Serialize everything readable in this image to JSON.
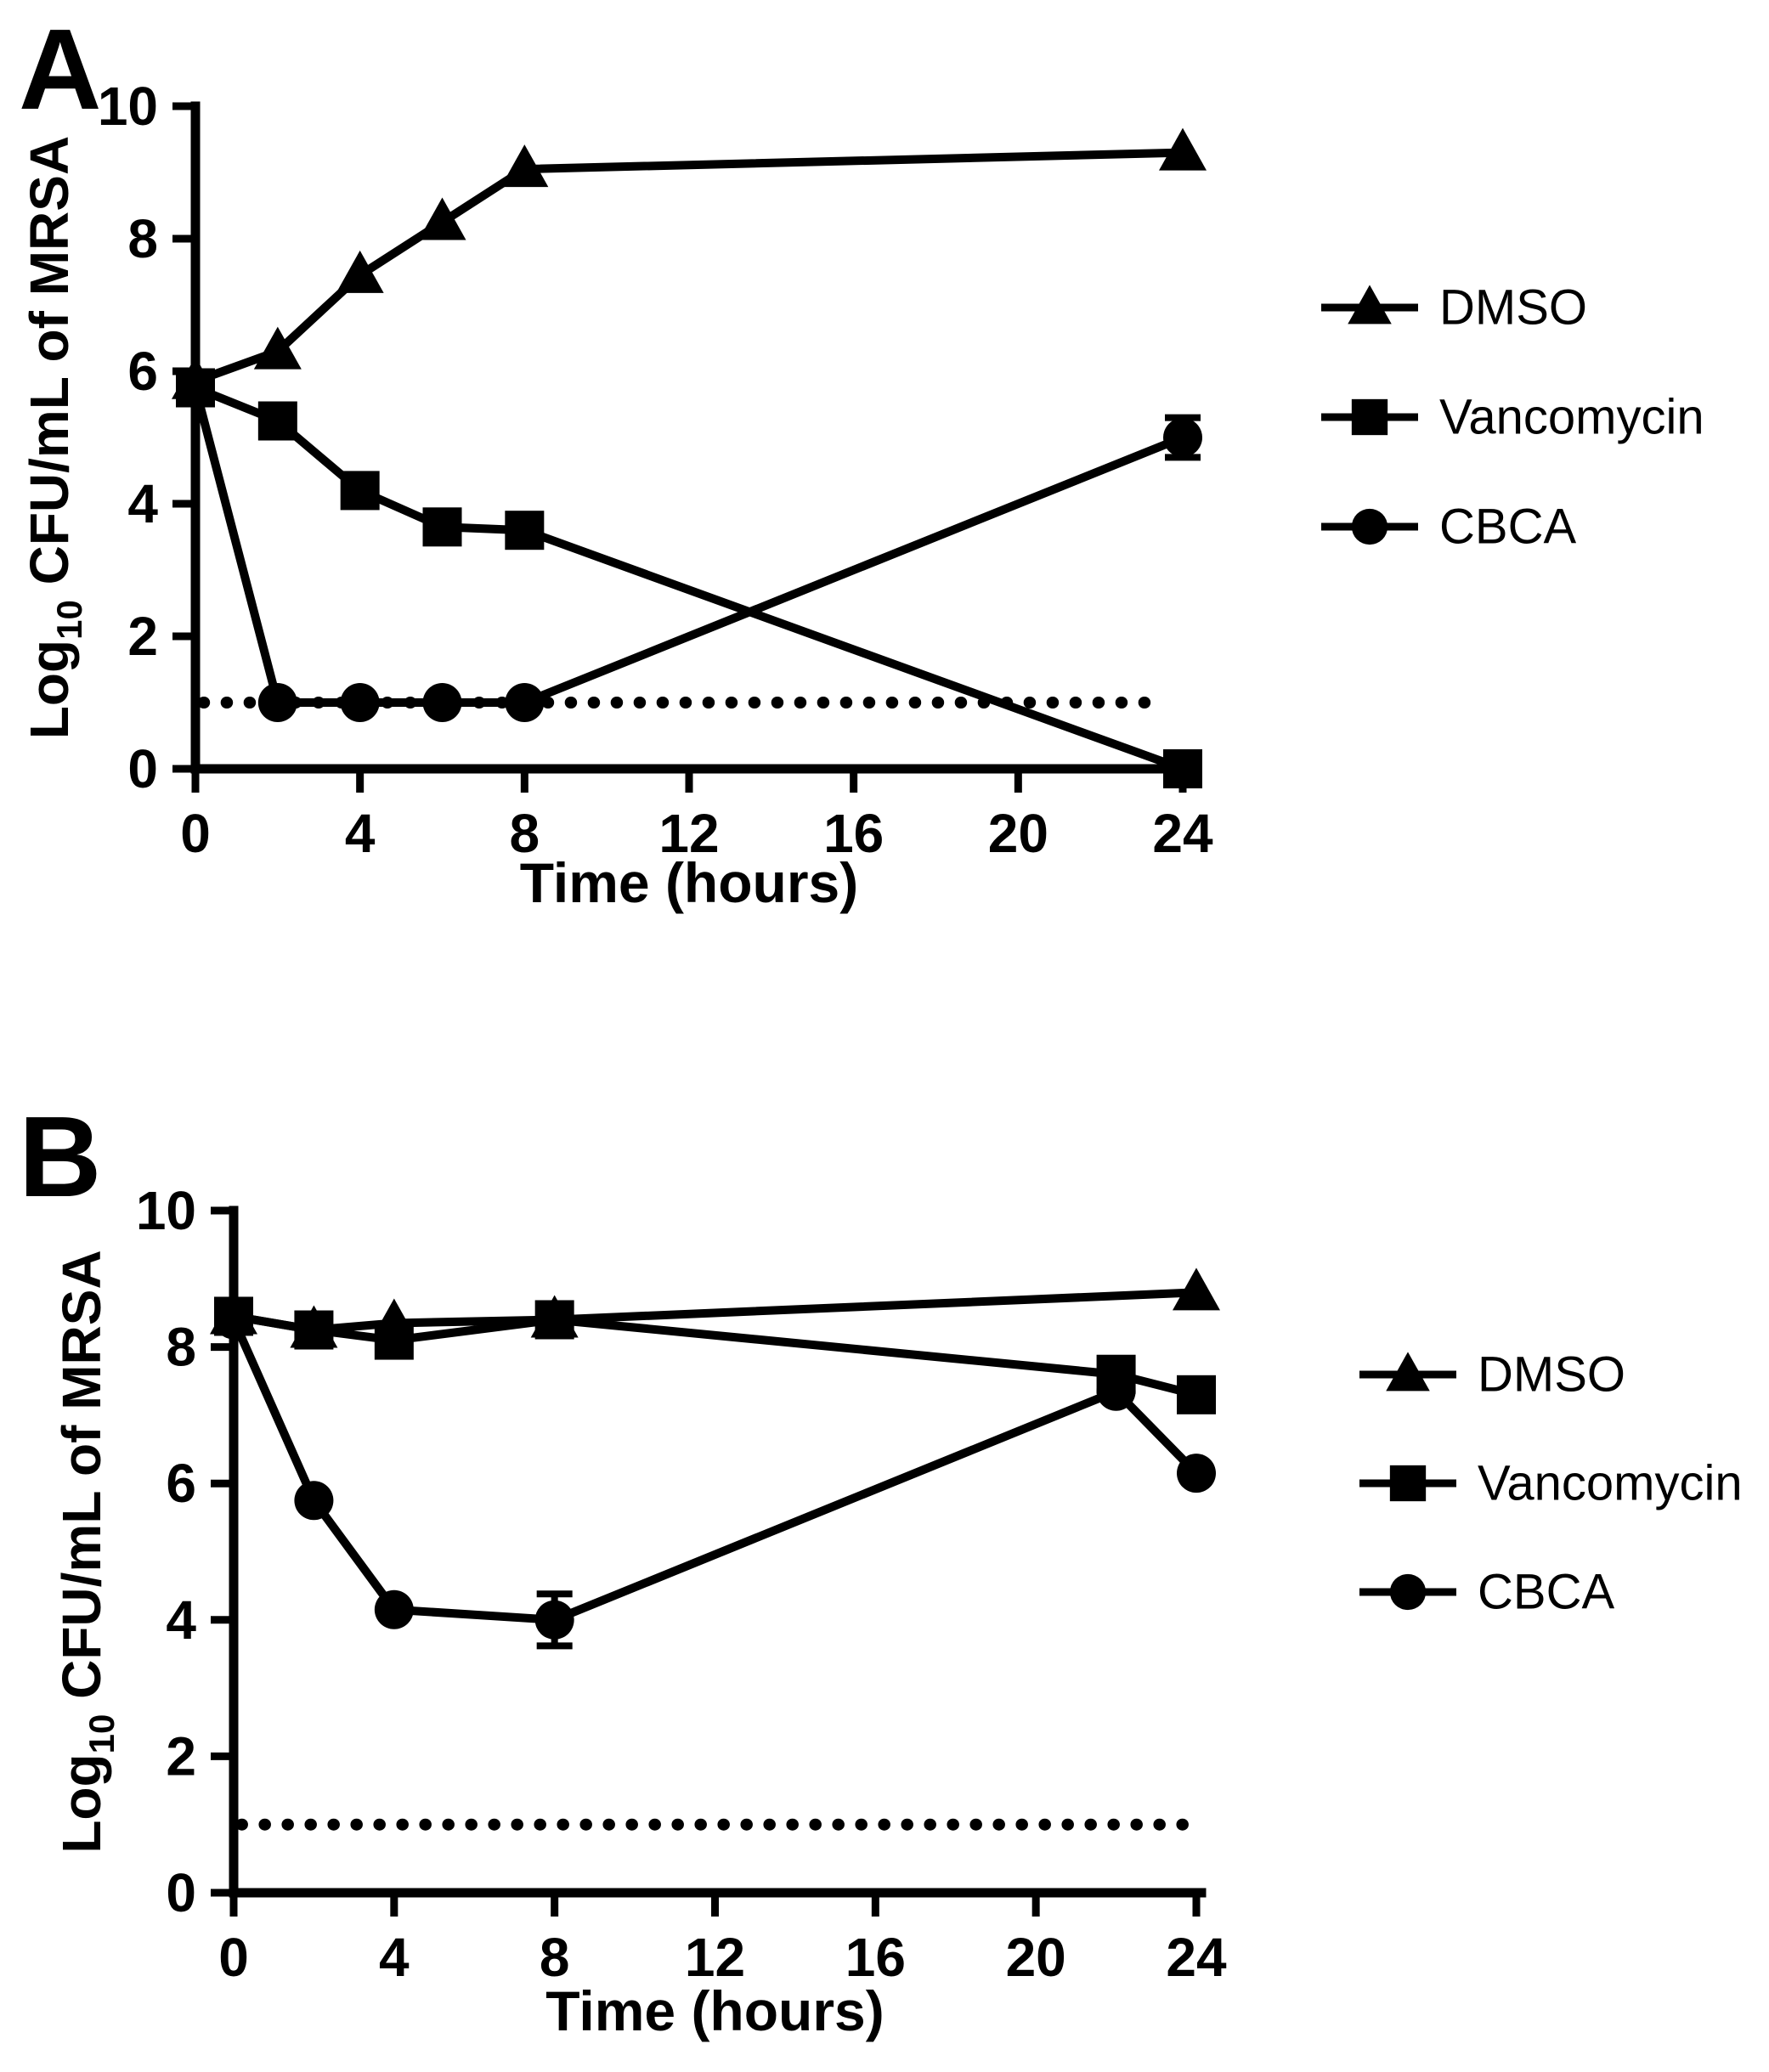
{
  "colors": {
    "ink": "#000000",
    "background": "#ffffff"
  },
  "chart_data": [
    {
      "type": "line",
      "panel_label": "A",
      "title": "",
      "xlabel": "Time (hours)",
      "ylabel_main": "Log",
      "ylabel_sub": "10",
      "ylabel_rest": " CFU/mL of MRSA",
      "xlim": [
        0,
        24
      ],
      "ylim": [
        0,
        10
      ],
      "x_ticks": [
        0,
        4,
        8,
        12,
        16,
        20,
        24
      ],
      "y_ticks": [
        0,
        2,
        4,
        6,
        8,
        10
      ],
      "grid": false,
      "legend_position": "right",
      "detection_limit": {
        "y": 1.0,
        "x_start": 0.2,
        "x_end": 23.35,
        "style": "dotted"
      },
      "series": [
        {
          "name": "DMSO",
          "marker": "triangle",
          "points": [
            [
              0,
              5.85
            ],
            [
              2,
              6.3
            ],
            [
              4,
              7.45
            ],
            [
              6,
              8.25
            ],
            [
              8,
              9.05
            ],
            [
              24,
              9.3
            ]
          ],
          "errors": {}
        },
        {
          "name": "Vancomycin",
          "marker": "square",
          "points": [
            [
              0,
              5.75
            ],
            [
              2,
              5.25
            ],
            [
              4,
              4.2
            ],
            [
              6,
              3.65
            ],
            [
              8,
              3.6
            ],
            [
              24,
              0
            ]
          ],
          "errors": {}
        },
        {
          "name": "CBCA",
          "marker": "circle",
          "points": [
            [
              0,
              5.75
            ],
            [
              2,
              1
            ],
            [
              4,
              1
            ],
            [
              6,
              1
            ],
            [
              8,
              1
            ],
            [
              24,
              5
            ]
          ],
          "errors": {
            "24": 0.3
          }
        }
      ]
    },
    {
      "type": "line",
      "panel_label": "B",
      "title": "",
      "xlabel": "Time (hours)",
      "ylabel_main": "Log",
      "ylabel_sub": "10",
      "ylabel_rest": " CFU/mL of MRSA",
      "xlim": [
        0,
        24
      ],
      "ylim": [
        0,
        10
      ],
      "x_ticks": [
        0,
        4,
        8,
        12,
        16,
        20,
        24
      ],
      "y_ticks": [
        0,
        2,
        4,
        6,
        8,
        10
      ],
      "grid": false,
      "legend_position": "right",
      "detection_limit": {
        "y": 1.0,
        "x_start": 0.2,
        "x_end": 24,
        "style": "dotted"
      },
      "series": [
        {
          "name": "DMSO",
          "marker": "triangle",
          "points": [
            [
              0,
              8.45
            ],
            [
              2,
              8.25
            ],
            [
              4,
              8.35
            ],
            [
              8,
              8.4
            ],
            [
              24,
              8.8
            ]
          ],
          "errors": {}
        },
        {
          "name": "Vancomycin",
          "marker": "square",
          "points": [
            [
              0,
              8.45
            ],
            [
              2,
              8.25
            ],
            [
              4,
              8.1
            ],
            [
              8,
              8.4
            ],
            [
              22,
              7.6
            ],
            [
              24,
              7.3
            ]
          ],
          "errors": {}
        },
        {
          "name": "CBCA",
          "marker": "circle",
          "points": [
            [
              0,
              8.4
            ],
            [
              2,
              5.75
            ],
            [
              4,
              4.15
            ],
            [
              8,
              4.0
            ],
            [
              22,
              7.35
            ],
            [
              24,
              6.15
            ]
          ],
          "errors": {
            "8": 0.38
          }
        }
      ]
    }
  ]
}
